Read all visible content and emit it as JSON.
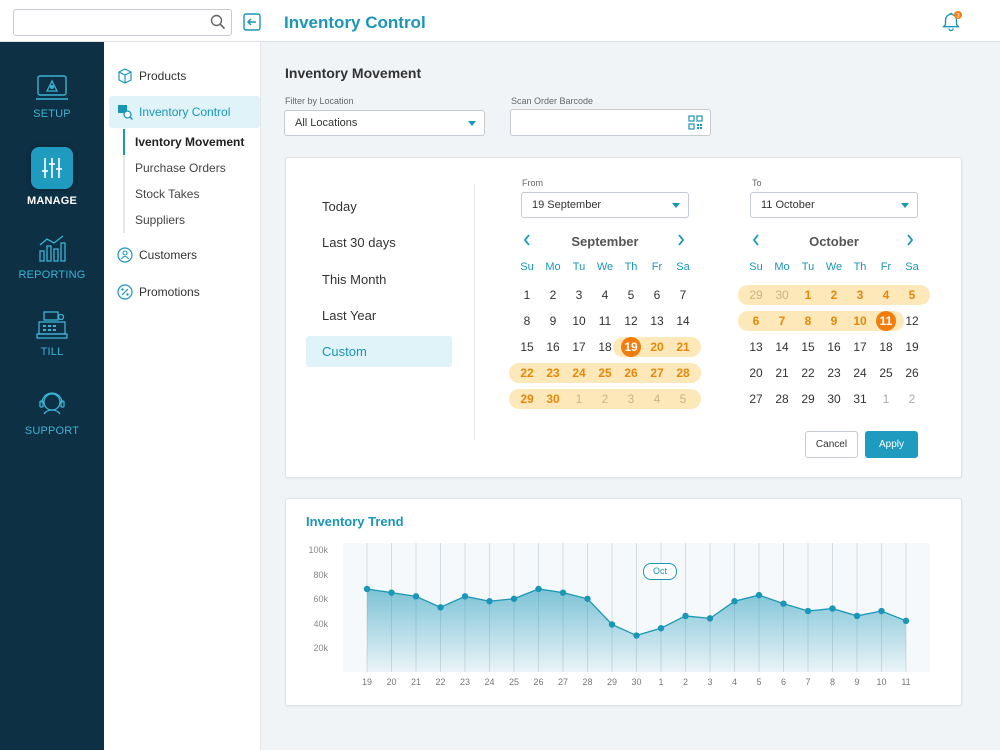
{
  "header": {
    "search_placeholder": "",
    "title": "Inventory Control",
    "notification_count": "3"
  },
  "rail": {
    "setup": "SETUP",
    "manage": "MANAGE",
    "reporting": "REPORTING",
    "till": "TILL",
    "support": "SUPPORT"
  },
  "subnav": {
    "products": "Products",
    "inventory_control": "Inventory Control",
    "sub_items": [
      "Iventory Movement",
      "Purchase Orders",
      "Stock Takes",
      "Suppliers"
    ],
    "customers": "Customers",
    "promotions": "Promotions"
  },
  "page": {
    "title": "Inventory Movement",
    "filter_label": "Filter by Location",
    "filter_value": "All Locations",
    "scan_label": "Scan Order Barcode",
    "scan_value": ""
  },
  "date_picker": {
    "presets": [
      "Today",
      "Last 30 days",
      "This Month",
      "Last Year",
      "Custom"
    ],
    "active_preset": "Custom",
    "from_label": "From",
    "from_value": "19 September",
    "to_label": "To",
    "to_value": "11 October",
    "weekdays": [
      "Su",
      "Mo",
      "Tu",
      "We",
      "Th",
      "Fr",
      "Sa"
    ],
    "cancel_label": "Cancel",
    "apply_label": "Apply",
    "months": [
      {
        "name": "September",
        "weeks": [
          [
            "1",
            "2",
            "3",
            "4",
            "5",
            "6",
            "7"
          ],
          [
            "8",
            "9",
            "10",
            "11",
            "12",
            "13",
            "14"
          ],
          [
            "15",
            "16",
            "17",
            "18",
            "19",
            "20",
            "21"
          ],
          [
            "22",
            "23",
            "24",
            "25",
            "26",
            "27",
            "28"
          ],
          [
            "29",
            "30",
            "1",
            "2",
            "3",
            "4",
            "5"
          ]
        ]
      },
      {
        "name": "October",
        "weeks": [
          [
            "29",
            "30",
            "1",
            "2",
            "3",
            "4",
            "5"
          ],
          [
            "6",
            "7",
            "8",
            "9",
            "10",
            "11",
            "12"
          ],
          [
            "13",
            "14",
            "15",
            "16",
            "17",
            "18",
            "19"
          ],
          [
            "20",
            "21",
            "22",
            "23",
            "24",
            "25",
            "26"
          ],
          [
            "27",
            "28",
            "29",
            "30",
            "31",
            "1",
            "2"
          ]
        ]
      }
    ]
  },
  "trend": {
    "title": "Inventory Trend",
    "tooltip": "Oct"
  },
  "chart_data": {
    "type": "area",
    "title": "Inventory Trend",
    "x": [
      "19",
      "20",
      "21",
      "22",
      "23",
      "24",
      "25",
      "26",
      "27",
      "28",
      "29",
      "30",
      "1",
      "2",
      "3",
      "4",
      "5",
      "6",
      "7",
      "8",
      "9",
      "10",
      "11"
    ],
    "series": [
      {
        "values": [
          69000,
          66000,
          63000,
          54000,
          63000,
          59000,
          61000,
          69000,
          66000,
          61000,
          40000,
          31000,
          37000,
          47000,
          45000,
          59000,
          64000,
          57000,
          51000,
          53000,
          47000,
          51000,
          43000
        ]
      }
    ],
    "ylim": [
      0,
      100000
    ],
    "yticks": [
      "100k",
      "80k",
      "60k",
      "40k",
      "20k"
    ],
    "ytick_values": [
      100000,
      80000,
      60000,
      40000,
      20000
    ],
    "color": "#1a96b7",
    "grid": "vertical"
  }
}
